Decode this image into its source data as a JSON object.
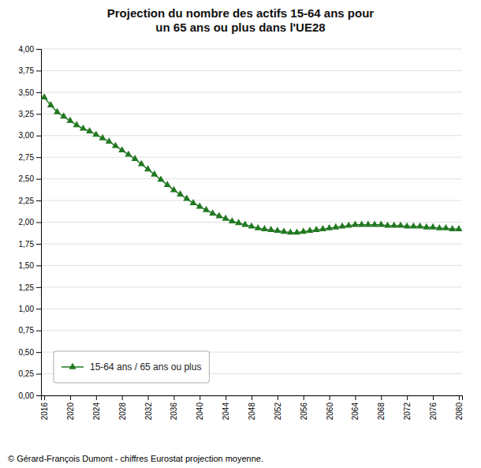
{
  "chart_data": {
    "type": "line",
    "title": "Projection du nombre des actifs 15-64 ans pour\nun 65 ans ou plus dans l'UE28",
    "caption": "© Gérard-François Dumont - chiffres Eurostat projection moyenne.",
    "x": [
      2016,
      2017,
      2018,
      2019,
      2020,
      2021,
      2022,
      2023,
      2024,
      2025,
      2026,
      2027,
      2028,
      2029,
      2030,
      2031,
      2032,
      2033,
      2034,
      2035,
      2036,
      2037,
      2038,
      2039,
      2040,
      2041,
      2042,
      2043,
      2044,
      2045,
      2046,
      2047,
      2048,
      2049,
      2050,
      2051,
      2052,
      2053,
      2054,
      2055,
      2056,
      2057,
      2058,
      2059,
      2060,
      2061,
      2062,
      2063,
      2064,
      2065,
      2066,
      2067,
      2068,
      2069,
      2070,
      2071,
      2072,
      2073,
      2074,
      2075,
      2076,
      2077,
      2078,
      2079,
      2080
    ],
    "series": [
      {
        "name": "15-64 ans / 65 ans ou plus",
        "color": "#217821",
        "marker": "triangle",
        "values": [
          3.44,
          3.35,
          3.27,
          3.22,
          3.17,
          3.12,
          3.08,
          3.05,
          3.01,
          2.97,
          2.93,
          2.88,
          2.83,
          2.78,
          2.73,
          2.67,
          2.61,
          2.55,
          2.49,
          2.43,
          2.37,
          2.32,
          2.27,
          2.22,
          2.18,
          2.14,
          2.1,
          2.07,
          2.04,
          2.01,
          1.99,
          1.97,
          1.95,
          1.93,
          1.92,
          1.91,
          1.9,
          1.89,
          1.88,
          1.88,
          1.89,
          1.9,
          1.91,
          1.92,
          1.93,
          1.94,
          1.95,
          1.96,
          1.97,
          1.97,
          1.97,
          1.97,
          1.97,
          1.96,
          1.96,
          1.96,
          1.95,
          1.95,
          1.95,
          1.94,
          1.94,
          1.93,
          1.93,
          1.92,
          1.92
        ]
      }
    ],
    "xlim": [
      2015.5,
      2080.5
    ],
    "xticks": [
      2016,
      2020,
      2024,
      2028,
      2032,
      2036,
      2040,
      2044,
      2048,
      2052,
      2056,
      2060,
      2064,
      2068,
      2072,
      2076,
      2080
    ],
    "ylim": [
      0.0,
      4.0
    ],
    "yticks": [
      {
        "value": 0.0,
        "label": "0,00"
      },
      {
        "value": 0.25,
        "label": "0,25"
      },
      {
        "value": 0.5,
        "label": "0,50"
      },
      {
        "value": 0.75,
        "label": "0,75"
      },
      {
        "value": 1.0,
        "label": "1,00"
      },
      {
        "value": 1.25,
        "label": "1,25"
      },
      {
        "value": 1.5,
        "label": "1,50"
      },
      {
        "value": 1.75,
        "label": "1,75"
      },
      {
        "value": 2.0,
        "label": "2,00"
      },
      {
        "value": 2.25,
        "label": "2,25"
      },
      {
        "value": 2.5,
        "label": "2,50"
      },
      {
        "value": 2.75,
        "label": "2,75"
      },
      {
        "value": 3.0,
        "label": "3,00"
      },
      {
        "value": 3.25,
        "label": "3,25"
      },
      {
        "value": 3.5,
        "label": "3,50"
      },
      {
        "value": 3.75,
        "label": "3,75"
      },
      {
        "value": 4.0,
        "label": "4,00"
      }
    ],
    "grid": true,
    "legend": "lower left"
  }
}
